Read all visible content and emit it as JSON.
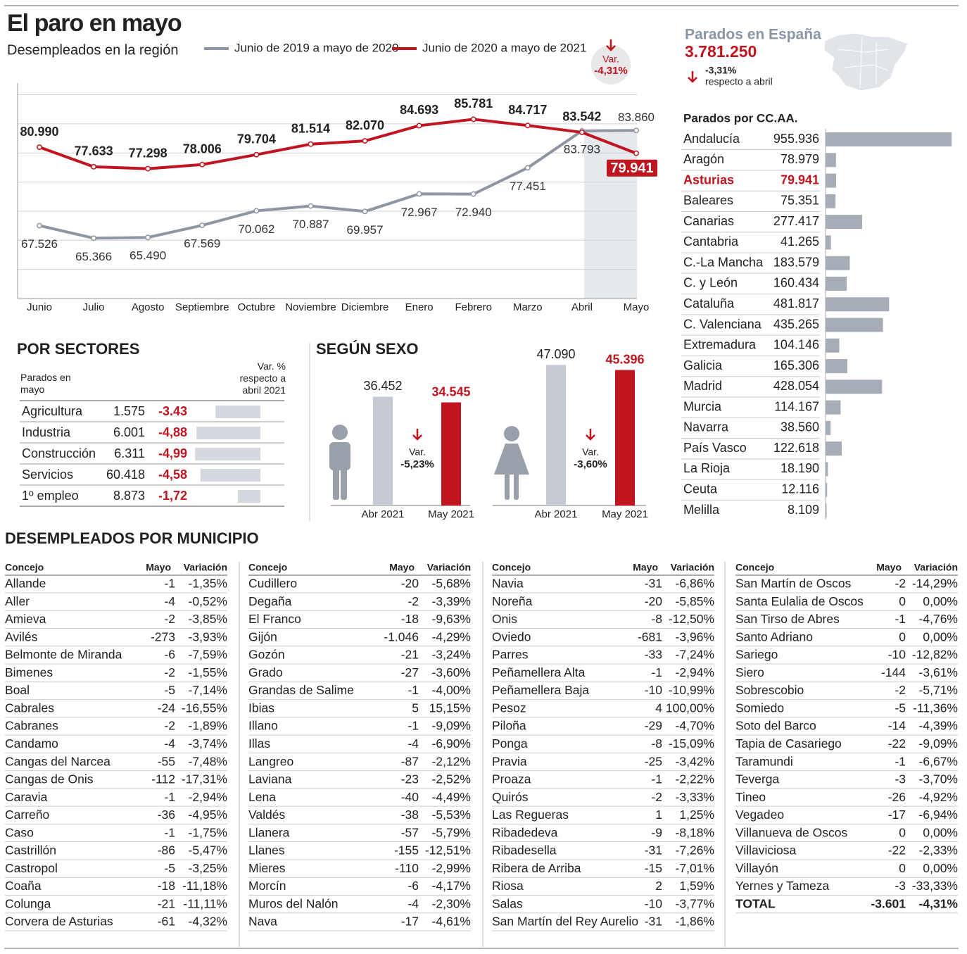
{
  "title": "El paro en mayo",
  "chart_data": [
    {
      "type": "line",
      "title": "Desempleados en la región",
      "categories": [
        "Junio",
        "Julio",
        "Agosto",
        "Septiembre",
        "Octubre",
        "Noviembre",
        "Diciembre",
        "Enero",
        "Febrero",
        "Marzo",
        "Abril",
        "Mayo"
      ],
      "series": [
        {
          "name": "Junio de 2019 a mayo de 2020",
          "color": "#8e96a3",
          "values": [
            67526,
            65366,
            65490,
            67569,
            70062,
            70887,
            69957,
            72967,
            72940,
            77451,
            83793,
            83860
          ],
          "value_labels": [
            "67.526",
            "65.366",
            "65.490",
            "67.569",
            "70.062",
            "70.887",
            "69.957",
            "72.967",
            "72.940",
            "77.451",
            "83.793",
            "83.860"
          ]
        },
        {
          "name": "Junio de 2020 a mayo de 2021",
          "color": "#c0141f",
          "values": [
            80990,
            77633,
            77298,
            78006,
            79704,
            81514,
            82070,
            84693,
            85781,
            84717,
            83542,
            79941
          ],
          "value_labels": [
            "80.990",
            "77.633",
            "77.298",
            "78.006",
            "79.704",
            "81.514",
            "82.070",
            "84.693",
            "85.781",
            "84.717",
            "83.542",
            "79.941"
          ]
        }
      ],
      "ylim": [
        55000,
        92000
      ],
      "yticks": [
        60000,
        65000,
        70000,
        75000,
        80000,
        85000,
        90000
      ],
      "grid": true,
      "annotation": {
        "label": "Var.",
        "value": -4.31,
        "value_label": "-4,31%"
      }
    },
    {
      "type": "table-bar",
      "title": "POR SECTORES",
      "categories": [
        "Agricultura",
        "Industria",
        "Construcción",
        "Servicios",
        "1º empleo"
      ],
      "series": [
        {
          "name": "Parados en mayo",
          "values": [
            1575,
            6001,
            6311,
            60418,
            8873
          ],
          "value_labels": [
            "1.575",
            "6.001",
            "6.311",
            "60.418",
            "8.873"
          ]
        },
        {
          "name": "Var. % respecto a abril 2021",
          "color": "#d5d9df",
          "label_color": "#c0141f",
          "values": [
            -3.43,
            -4.88,
            -4.99,
            -4.58,
            -1.72
          ],
          "value_labels": [
            "-3.43",
            "-4,88",
            "-4,99",
            "-4,58",
            "-1,72"
          ]
        }
      ],
      "xlim": [
        -5,
        0
      ]
    },
    {
      "type": "grouped-bar",
      "title": "SEGÚN SEXO",
      "categories": [
        "Abr 2021",
        "May 2021"
      ],
      "colors": [
        "#c5cad3",
        "#c0141f"
      ],
      "groups": [
        {
          "values": [
            36452,
            34545
          ],
          "value_labels": [
            "36.452",
            "34.545"
          ],
          "variation": {
            "label": "Var.",
            "value": -5.23,
            "value_label": "-5,23%"
          }
        },
        {
          "values": [
            47090,
            45396
          ],
          "value_labels": [
            "47.090",
            "45.396"
          ],
          "variation": {
            "label": "Var.",
            "value": -3.6,
            "value_label": "-3,60%"
          }
        }
      ],
      "ylim": [
        0,
        50000
      ]
    },
    {
      "type": "hbar",
      "title": "Parados por CC.AA.",
      "categories": [
        "Andalucía",
        "Aragón",
        "Asturias",
        "Baleares",
        "Canarias",
        "Cantabria",
        "C.-La Mancha",
        "C. y León",
        "Cataluña",
        "C. Valenciana",
        "Extremadura",
        "Galicia",
        "Madrid",
        "Murcia",
        "Navarra",
        "País Vasco",
        "La Rioja",
        "Ceuta",
        "Melilla"
      ],
      "values": [
        955936,
        78979,
        79941,
        75351,
        277417,
        41265,
        183579,
        160434,
        481817,
        435265,
        104146,
        165306,
        428054,
        114167,
        38560,
        122618,
        18190,
        12116,
        8109
      ],
      "value_labels": [
        "955.936",
        "78.979",
        "79.941",
        "75.351",
        "277.417",
        "41.265",
        "183.579",
        "160.434",
        "481.817",
        "435.265",
        "104.146",
        "165.306",
        "428.054",
        "114.167",
        "38.560",
        "122.618",
        "18.190",
        "12.116",
        "8.109"
      ],
      "color": "#a7adb7",
      "highlight": {
        "index": 2,
        "color": "#c0141f"
      },
      "xlim": [
        0,
        960000
      ]
    }
  ],
  "spain": {
    "title": "Parados en España",
    "value": 3781250,
    "value_label": "3.781.250",
    "variation": {
      "value": -3.31,
      "value_label": "-3,31%",
      "note": "respecto a abril"
    }
  },
  "municipios": {
    "title": "DESEMPLEADOS POR MUNICIPIO",
    "columns": [
      "Concejo",
      "Mayo",
      "Variación"
    ],
    "rows": [
      [
        "Allande",
        "-1",
        "-1,35%"
      ],
      [
        "Aller",
        "-4",
        "-0,52%"
      ],
      [
        "Amieva",
        "-2",
        "-3,85%"
      ],
      [
        "Avilés",
        "-273",
        "-3,93%"
      ],
      [
        "Belmonte de Miranda",
        "-6",
        "-7,59%"
      ],
      [
        "Bimenes",
        "-2",
        "-1,55%"
      ],
      [
        "Boal",
        "-5",
        "-7,14%"
      ],
      [
        "Cabrales",
        "-24",
        "-16,55%"
      ],
      [
        "Cabranes",
        "-2",
        "-1,89%"
      ],
      [
        "Candamo",
        "-4",
        "-3,74%"
      ],
      [
        "Cangas del Narcea",
        "-55",
        "-7,48%"
      ],
      [
        "Cangas de Onis",
        "-112",
        "-17,31%"
      ],
      [
        "Caravia",
        "-1",
        "-2,94%"
      ],
      [
        "Carreño",
        "-36",
        "-4,95%"
      ],
      [
        "Caso",
        "-1",
        "-1,75%"
      ],
      [
        "Castrillón",
        "-86",
        "-5,47%"
      ],
      [
        "Castropol",
        "-5",
        "-3,25%"
      ],
      [
        "Coaña",
        "-18",
        "-11,18%"
      ],
      [
        "Colunga",
        "-21",
        "-11,11%"
      ],
      [
        "Corvera de Asturias",
        "-61",
        "-4,32%"
      ],
      [
        "Cudillero",
        "-20",
        "-5,68%"
      ],
      [
        "Degaña",
        "-2",
        "-3,39%"
      ],
      [
        "El Franco",
        "-18",
        "-9,63%"
      ],
      [
        "Gijón",
        "-1.046",
        "-4,29%"
      ],
      [
        "Gozón",
        "-21",
        "-3,24%"
      ],
      [
        "Grado",
        "-27",
        "-3,60%"
      ],
      [
        "Grandas de Salime",
        "-1",
        "-4,00%"
      ],
      [
        "Ibias",
        "5",
        "15,15%"
      ],
      [
        "Illano",
        "-1",
        "-9,09%"
      ],
      [
        "Illas",
        "-4",
        "-6,90%"
      ],
      [
        "Langreo",
        "-87",
        "-2,12%"
      ],
      [
        "Laviana",
        "-23",
        "-2,52%"
      ],
      [
        "Lena",
        "-40",
        "-4,49%"
      ],
      [
        "Valdés",
        "-38",
        "-5,53%"
      ],
      [
        "Llanera",
        "-57",
        "-5,79%"
      ],
      [
        "Llanes",
        "-155",
        "-12,51%"
      ],
      [
        "Mieres",
        "-110",
        "-2,99%"
      ],
      [
        "Morcín",
        "-6",
        "-4,17%"
      ],
      [
        "Muros del Nalón",
        "-4",
        "-2,30%"
      ],
      [
        "Nava",
        "-17",
        "-4,61%"
      ],
      [
        "Navia",
        "-31",
        "-6,86%"
      ],
      [
        "Noreña",
        "-20",
        "-5,85%"
      ],
      [
        "Onis",
        "-8",
        "-12,50%"
      ],
      [
        "Oviedo",
        "-681",
        "-3,96%"
      ],
      [
        "Parres",
        "-33",
        "-7,24%"
      ],
      [
        "Peñamellera Alta",
        "-1",
        "-2,94%"
      ],
      [
        "Peñamellera Baja",
        "-10",
        "-10,99%"
      ],
      [
        "Pesoz",
        "4",
        "100,00%"
      ],
      [
        "Piloña",
        "-29",
        "-4,70%"
      ],
      [
        "Ponga",
        "-8",
        "-15,09%"
      ],
      [
        "Pravia",
        "-25",
        "-3,42%"
      ],
      [
        "Proaza",
        "-1",
        "-2,22%"
      ],
      [
        "Quirós",
        "-2",
        "-3,33%"
      ],
      [
        "Las Regueras",
        "1",
        "1,25%"
      ],
      [
        "Ribadedeva",
        "-9",
        "-8,18%"
      ],
      [
        "Ribadesella",
        "-31",
        "-7,26%"
      ],
      [
        "Ribera de Arriba",
        "-15",
        "-7,01%"
      ],
      [
        "Riosa",
        "2",
        "1,59%"
      ],
      [
        "Salas",
        "-10",
        "-3,77%"
      ],
      [
        "San Martín del Rey Aurelio",
        "-31",
        "-1,86%"
      ],
      [
        "San Martín de Oscos",
        "-2",
        "-14,29%"
      ],
      [
        "Santa Eulalia de Oscos",
        "0",
        "0,00%"
      ],
      [
        "San Tirso de Abres",
        "-1",
        "-4,76%"
      ],
      [
        "Santo Adriano",
        "0",
        "0,00%"
      ],
      [
        "Sariego",
        "-10",
        "-12,82%"
      ],
      [
        "Siero",
        "-144",
        "-3,61%"
      ],
      [
        "Sobrescobio",
        "-2",
        "-5,71%"
      ],
      [
        "Somiedo",
        "-5",
        "-11,36%"
      ],
      [
        "Soto del Barco",
        "-14",
        "-4,39%"
      ],
      [
        "Tapia de Casariego",
        "-22",
        "-9,09%"
      ],
      [
        "Taramundi",
        "-1",
        "-6,67%"
      ],
      [
        "Teverga",
        "-3",
        "-3,70%"
      ],
      [
        "Tineo",
        "-26",
        "-4,92%"
      ],
      [
        "Vegadeo",
        "-17",
        "-6,94%"
      ],
      [
        "Villanueva de Oscos",
        "0",
        "0,00%"
      ],
      [
        "Villaviciosa",
        "-22",
        "-2,33%"
      ],
      [
        "Villayón",
        "0",
        "0,00%"
      ],
      [
        "Yernes y Tameza",
        "-3",
        "-33,33%"
      ]
    ],
    "total": [
      "TOTAL",
      "-3.601",
      "-4,31%"
    ]
  }
}
